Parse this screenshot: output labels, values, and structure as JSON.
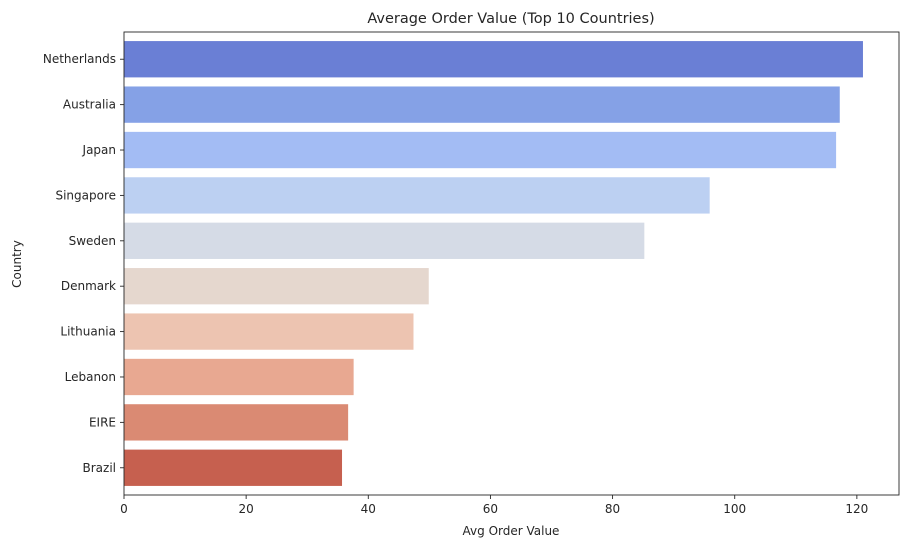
{
  "chart_data": {
    "type": "bar",
    "orientation": "horizontal",
    "title": "Average Order Value (Top 10 Countries)",
    "xlabel": "Avg Order Value",
    "ylabel": "Country",
    "xlim": [
      0,
      126.9
    ],
    "xticks": [
      0,
      20,
      40,
      60,
      80,
      100,
      120
    ],
    "grid": false,
    "categories": [
      "Netherlands",
      "Australia",
      "Japan",
      "Singapore",
      "Sweden",
      "Denmark",
      "Lithuania",
      "Lebanon",
      "EIRE",
      "Brazil"
    ],
    "values": [
      121.0,
      117.2,
      116.6,
      95.9,
      85.2,
      49.9,
      47.4,
      37.6,
      36.7,
      35.7
    ],
    "colors": [
      "#6a7fd5",
      "#85a1e6",
      "#a3bcf4",
      "#bcd0f2",
      "#d5dbe6",
      "#e5d7ce",
      "#edc4b1",
      "#e8a891",
      "#da8a73",
      "#c6604f"
    ]
  }
}
